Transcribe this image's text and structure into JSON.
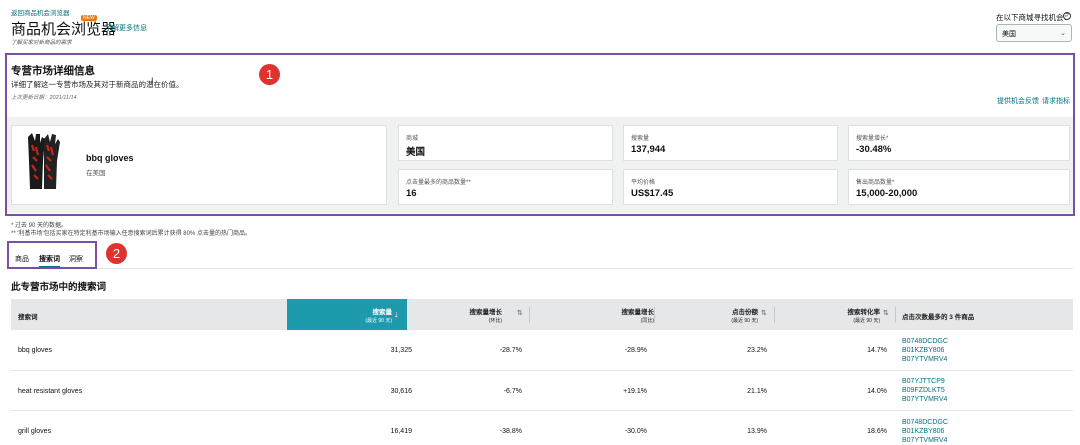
{
  "header": {
    "back_link": "返回商品机会浏览器",
    "title": "商品机会浏览器",
    "new_badge": "NEW",
    "learn_more": "了解更多信息",
    "subtitle": "了解买家对新商品的需求",
    "marketplace_label": "在以下商城寻找机会：",
    "marketplace_value": "美国"
  },
  "markers": [
    "1",
    "2"
  ],
  "detail": {
    "title": "专营市场详细信息",
    "description": "详细了解这一专营市场及其对于新商品的潜在价值。",
    "updated": "上次更新日期：2021/11/14",
    "feedback_link": "提供机会反馈",
    "request_link": "请求指标"
  },
  "product": {
    "name": "bbq gloves",
    "subtitle": "在美国"
  },
  "metrics": [
    {
      "label": "商城",
      "value": "美国"
    },
    {
      "label": "搜索量",
      "value": "137,944"
    },
    {
      "label": "搜索量增长*",
      "value": "-30.48%"
    },
    {
      "label": "点击量最多的商品数量**",
      "value": "16"
    },
    {
      "label": "平均价格",
      "value": "US$17.45"
    },
    {
      "label": "售出商品数量*",
      "value": "15,000-20,000"
    }
  ],
  "footnotes": [
    "* 过去 90 天的数据。",
    "** '利基市场'包括买家在特定利基市场输入任意搜索词后累计获得 80% 点击量的热门商品。"
  ],
  "tabs": [
    "商品",
    "搜索词",
    "洞察"
  ],
  "table": {
    "title": "此专营市场中的搜索词",
    "columns": [
      {
        "label": "搜索词",
        "sub": ""
      },
      {
        "label": "搜索量",
        "sub": "(最近 90 天)"
      },
      {
        "label": "搜索量增长",
        "sub": "(环比)"
      },
      {
        "label": "搜索量增长",
        "sub": "(同比)"
      },
      {
        "label": "点击份额",
        "sub": "(最近 90 天)"
      },
      {
        "label": "搜索转化率",
        "sub": "(最近 90 天)"
      },
      {
        "label": "点击次数最多的 3 件商品",
        "sub": ""
      }
    ],
    "rows": [
      {
        "term": "bbq gloves",
        "volume": "31,325",
        "growth_qoq": "-28.7%",
        "growth_yoy": "-28.9%",
        "click_share": "23.2%",
        "conversion": "14.7%",
        "asins": [
          "B0748DCDGC",
          "B01KZBY806",
          "B07YTVMRV4"
        ]
      },
      {
        "term": "heat resistant gloves",
        "volume": "30,616",
        "growth_qoq": "-6.7%",
        "growth_yoy": "+19.1%",
        "click_share": "21.1%",
        "conversion": "14.0%",
        "asins": [
          "B07YJTTCP9",
          "B09FZDLKT5",
          "B07YTVMRV4"
        ]
      },
      {
        "term": "grill gloves",
        "volume": "16,419",
        "growth_qoq": "-38.8%",
        "growth_yoy": "-30.0%",
        "click_share": "13.9%",
        "conversion": "18.6%",
        "asins": [
          "B0748DCDGC",
          "B01KZBY806",
          "B07YTVMRV4"
        ]
      }
    ]
  },
  "colors": {
    "link": "#007185",
    "sorted_header": "#1e9aad",
    "highlight_border": "#7a4fa5",
    "marker": "#e0332f"
  }
}
